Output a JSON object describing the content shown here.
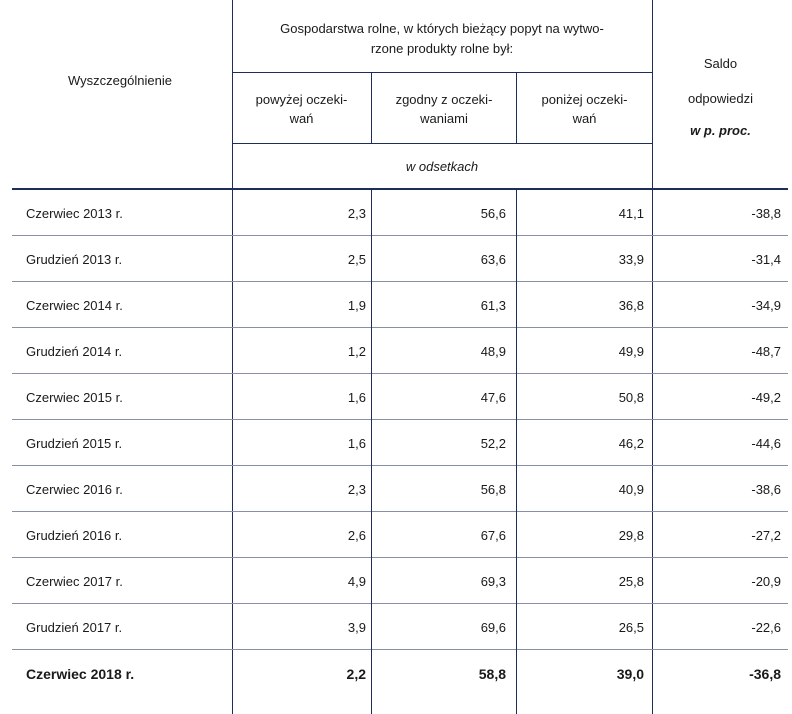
{
  "header": {
    "stub": "Wyszczególnienie",
    "group_line1": "Gospodarstwa rolne, w których bieżący popyt na wytwo-",
    "group_line2": "rzone produkty rolne był:",
    "col1_line1": "powyżej oczeki-",
    "col1_line2": "wań",
    "col2_line1": "zgodny z oczeki-",
    "col2_line2": "waniami",
    "col3_line1": "poniżej oczeki-",
    "col3_line2": "wań",
    "unit": "w odsetkach",
    "saldo_line1": "Saldo",
    "saldo_line2": "odpowiedzi",
    "saldo_line3": "w p. proc."
  },
  "rows": [
    {
      "label": "Czerwiec 2013 r.",
      "above": "2,3",
      "as_expected": "56,6",
      "below": "41,1",
      "balance": "-38,8"
    },
    {
      "label": "Grudzień  2013 r.",
      "above": "2,5",
      "as_expected": "63,6",
      "below": "33,9",
      "balance": "-31,4"
    },
    {
      "label": "Czerwiec 2014 r.",
      "above": "1,9",
      "as_expected": "61,3",
      "below": "36,8",
      "balance": "-34,9"
    },
    {
      "label": "Grudzień  2014 r.",
      "above": "1,2",
      "as_expected": "48,9",
      "below": "49,9",
      "balance": "-48,7"
    },
    {
      "label": "Czerwiec 2015 r.",
      "above": "1,6",
      "as_expected": "47,6",
      "below": "50,8",
      "balance": "-49,2"
    },
    {
      "label": "Grudzień  2015 r.",
      "above": "1,6",
      "as_expected": "52,2",
      "below": "46,2",
      "balance": "-44,6"
    },
    {
      "label": "Czerwiec 2016 r.",
      "above": "2,3",
      "as_expected": "56,8",
      "below": "40,9",
      "balance": "-38,6"
    },
    {
      "label": "Grudzień  2016 r.",
      "above": "2,6",
      "as_expected": "67,6",
      "below": "29,8",
      "balance": "-27,2"
    },
    {
      "label": "Czerwiec 2017 r.",
      "above": "4,9",
      "as_expected": "69,3",
      "below": "25,8",
      "balance": "-20,9"
    },
    {
      "label": "Grudzień  2017 r.",
      "above": "3,9",
      "as_expected": "69,6",
      "below": "26,5",
      "balance": "-22,6"
    },
    {
      "label": "Czerwiec 2018 r.",
      "above": "2,2",
      "as_expected": "58,8",
      "below": "39,0",
      "balance": "-36,8"
    }
  ]
}
